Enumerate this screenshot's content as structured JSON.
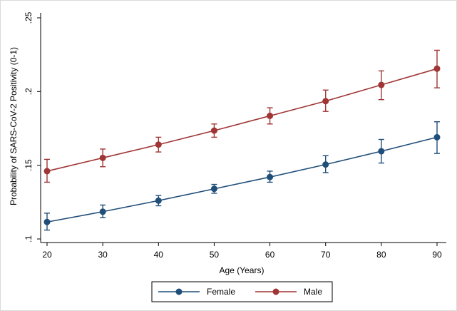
{
  "chart_data": {
    "type": "line",
    "title": "",
    "xlabel": "Age (Years)",
    "ylabel": "Probability of SARS-CoV-2 Positivity (0-1)",
    "x": [
      20,
      30,
      40,
      50,
      60,
      70,
      80,
      90
    ],
    "xlim": [
      20,
      90
    ],
    "ylim": [
      0.1,
      0.25
    ],
    "xticks": [
      20,
      30,
      40,
      50,
      60,
      70,
      80,
      90
    ],
    "xtick_labels": [
      "20",
      "30",
      "40",
      "50",
      "60",
      "70",
      "80",
      "90"
    ],
    "yticks": [
      0.1,
      0.15,
      0.2,
      0.25
    ],
    "ytick_labels": [
      ".1",
      ".15",
      ".2",
      ".25"
    ],
    "grid": false,
    "legend": {
      "placement": "bottom",
      "entries": [
        "Female",
        "Male"
      ]
    },
    "series": [
      {
        "name": "Female",
        "color": "#1f4e79",
        "values": [
          0.1115,
          0.1185,
          0.126,
          0.134,
          0.142,
          0.1505,
          0.1595,
          0.169
        ],
        "lower": [
          0.106,
          0.1145,
          0.1225,
          0.131,
          0.1385,
          0.145,
          0.1515,
          0.158
        ],
        "upper": [
          0.1175,
          0.123,
          0.1295,
          0.137,
          0.146,
          0.1565,
          0.1675,
          0.1795
        ]
      },
      {
        "name": "Male",
        "color": "#a03535",
        "values": [
          0.146,
          0.155,
          0.164,
          0.1735,
          0.1835,
          0.1935,
          0.2045,
          0.2155
        ],
        "lower": [
          0.1385,
          0.149,
          0.159,
          0.169,
          0.178,
          0.1865,
          0.1945,
          0.2025
        ],
        "upper": [
          0.154,
          0.161,
          0.169,
          0.178,
          0.189,
          0.201,
          0.214,
          0.228
        ]
      }
    ]
  }
}
